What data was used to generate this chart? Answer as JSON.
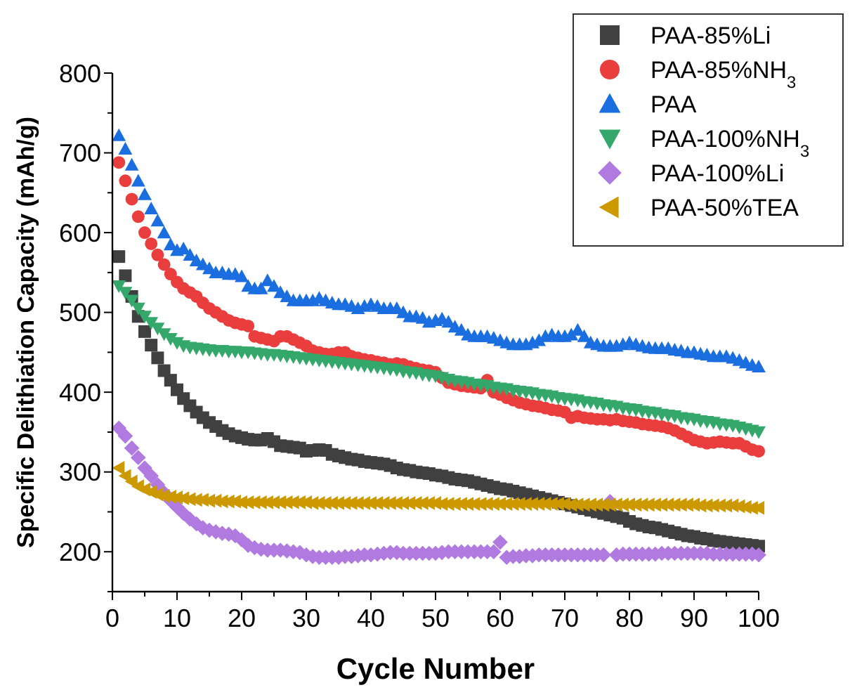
{
  "chart_data": {
    "type": "scatter",
    "xlabel": "Cycle Number",
    "ylabel": "Specific Delithiation Capacity (mAh/g)",
    "x": [
      1,
      2,
      3,
      4,
      5,
      6,
      7,
      8,
      9,
      10,
      11,
      12,
      13,
      14,
      15,
      16,
      17,
      18,
      19,
      20,
      21,
      22,
      23,
      24,
      25,
      26,
      27,
      28,
      29,
      30,
      31,
      32,
      33,
      34,
      35,
      36,
      37,
      38,
      39,
      40,
      41,
      42,
      43,
      44,
      45,
      46,
      47,
      48,
      49,
      50,
      51,
      52,
      53,
      54,
      55,
      56,
      57,
      58,
      59,
      60,
      61,
      62,
      63,
      64,
      65,
      66,
      67,
      68,
      69,
      70,
      71,
      72,
      73,
      74,
      75,
      76,
      77,
      78,
      79,
      80,
      81,
      82,
      83,
      84,
      85,
      86,
      87,
      88,
      89,
      90,
      91,
      92,
      93,
      94,
      95,
      96,
      97,
      98,
      99,
      100
    ],
    "xlim": [
      0,
      100
    ],
    "xticks": [
      0,
      {
        "value": 5,
        "label": null
      },
      10,
      {
        "value": 15,
        "label": null
      },
      20,
      {
        "value": 25,
        "label": null
      },
      30,
      {
        "value": 35,
        "label": null
      },
      40,
      {
        "value": 45,
        "label": null
      },
      50,
      {
        "value": 55,
        "label": null
      },
      60,
      {
        "value": 65,
        "label": null
      },
      70,
      {
        "value": 75,
        "label": null
      },
      80,
      {
        "value": 85,
        "label": null
      },
      90,
      {
        "value": 95,
        "label": null
      },
      100
    ],
    "ylim": [
      150,
      800
    ],
    "yticks": [
      {
        "value": 150,
        "label": null
      },
      200,
      {
        "value": 250,
        "label": null
      },
      300,
      {
        "value": 350,
        "label": null
      },
      400,
      {
        "value": 450,
        "label": null
      },
      500,
      {
        "value": 550,
        "label": null
      },
      600,
      {
        "value": 650,
        "label": null
      },
      700,
      {
        "value": 750,
        "label": null
      },
      800
    ],
    "grid": false,
    "legend": "top right",
    "series": [
      {
        "name": "PAA-85%Li",
        "color": "#404040",
        "marker": "square",
        "values": [
          570,
          546,
          520,
          495,
          476,
          459,
          443,
          427,
          415,
          403,
          392,
          383,
          375,
          368,
          362,
          357,
          352,
          348,
          345,
          343,
          341,
          340,
          340,
          342,
          338,
          333,
          332,
          331,
          330,
          326,
          327,
          328,
          327,
          322,
          320,
          318,
          316,
          315,
          313,
          312,
          311,
          310,
          308,
          305,
          303,
          302,
          300,
          299,
          298,
          296,
          295,
          293,
          291,
          290,
          289,
          287,
          285,
          283,
          281,
          279,
          278,
          276,
          274,
          272,
          270,
          268,
          266,
          264,
          262,
          260,
          258,
          256,
          254,
          252,
          250,
          248,
          246,
          244,
          242,
          238,
          235,
          233,
          231,
          230,
          228,
          226,
          224,
          222,
          220,
          219,
          217,
          216,
          214,
          213,
          212,
          211,
          210,
          209,
          208,
          207
        ]
      },
      {
        "name": "PAA-85%NH$_{3}$",
        "color": "#ea3d3d",
        "marker": "circle",
        "values": [
          688,
          665,
          642,
          620,
          600,
          586,
          572,
          560,
          548,
          538,
          530,
          525,
          520,
          512,
          505,
          500,
          495,
          490,
          487,
          485,
          483,
          470,
          468,
          466,
          464,
          470,
          470,
          466,
          462,
          458,
          452,
          450,
          448,
          448,
          450,
          450,
          445,
          443,
          441,
          440,
          438,
          437,
          435,
          436,
          435,
          432,
          430,
          428,
          427,
          425,
          418,
          412,
          410,
          408,
          407,
          406,
          405,
          415,
          400,
          397,
          393,
          390,
          387,
          385,
          383,
          382,
          380,
          378,
          377,
          375,
          368,
          370,
          368,
          367,
          366,
          366,
          365,
          366,
          364,
          363,
          362,
          360,
          359,
          358,
          357,
          355,
          352,
          348,
          344,
          340,
          338,
          336,
          337,
          338,
          337,
          336,
          336,
          332,
          328,
          326
        ]
      },
      {
        "name": "PAA",
        "color": "#1a6ee0",
        "marker": "triangle",
        "values": [
          722,
          705,
          685,
          665,
          648,
          630,
          615,
          600,
          585,
          578,
          580,
          572,
          565,
          560,
          555,
          550,
          550,
          548,
          548,
          545,
          533,
          530,
          530,
          540,
          533,
          525,
          520,
          515,
          515,
          515,
          515,
          518,
          515,
          512,
          510,
          510,
          508,
          505,
          508,
          510,
          508,
          505,
          505,
          505,
          500,
          495,
          495,
          493,
          488,
          490,
          492,
          488,
          482,
          478,
          472,
          470,
          470,
          470,
          468,
          465,
          462,
          460,
          460,
          460,
          462,
          465,
          470,
          472,
          470,
          470,
          472,
          478,
          470,
          462,
          460,
          458,
          458,
          458,
          460,
          462,
          460,
          458,
          456,
          455,
          455,
          455,
          453,
          452,
          450,
          450,
          448,
          447,
          445,
          445,
          445,
          443,
          440,
          437,
          434,
          432
        ]
      },
      {
        "name": "PAA-100%NH$_{3}$",
        "color": "#33a86a",
        "marker": "triangle-down",
        "values": [
          533,
          525,
          515,
          505,
          495,
          487,
          480,
          473,
          467,
          462,
          458,
          456,
          455,
          454,
          453,
          452,
          452,
          451,
          451,
          450,
          450,
          449,
          448,
          447,
          447,
          446,
          445,
          444,
          443,
          442,
          441,
          440,
          439,
          438,
          437,
          436,
          435,
          434,
          433,
          432,
          431,
          430,
          429,
          428,
          426,
          425,
          424,
          422,
          421,
          420,
          418,
          416,
          414,
          413,
          412,
          410,
          409,
          408,
          406,
          405,
          404,
          402,
          401,
          400,
          399,
          397,
          396,
          395,
          393,
          392,
          391,
          390,
          388,
          387,
          386,
          384,
          383,
          382,
          380,
          379,
          378,
          376,
          375,
          374,
          372,
          371,
          370,
          368,
          367,
          366,
          364,
          363,
          362,
          360,
          359,
          358,
          356,
          354,
          352,
          350
        ]
      },
      {
        "name": "PAA-100%Li",
        "color": "#b07ae0",
        "marker": "diamond",
        "values": [
          355,
          345,
          330,
          318,
          305,
          295,
          284,
          274,
          264,
          256,
          248,
          241,
          235,
          230,
          227,
          225,
          223,
          222,
          220,
          215,
          208,
          205,
          203,
          202,
          202,
          202,
          201,
          200,
          199,
          196,
          194,
          193,
          193,
          193,
          193,
          194,
          194,
          195,
          196,
          196,
          197,
          198,
          199,
          199,
          198,
          198,
          198,
          198,
          198,
          198,
          199,
          200,
          200,
          200,
          200,
          200,
          200,
          200,
          200,
          212,
          193,
          194,
          194,
          195,
          195,
          196,
          196,
          196,
          196,
          196,
          196,
          196,
          196,
          196,
          196,
          196,
          263,
          196,
          197,
          197,
          197,
          197,
          197,
          197,
          198,
          198,
          198,
          198,
          198,
          198,
          198,
          198,
          197,
          197,
          197,
          197,
          197,
          197,
          197,
          196
        ]
      },
      {
        "name": "PAA-50%TEA",
        "color": "#cc9900",
        "marker": "triangle-left",
        "values": [
          305,
          295,
          288,
          282,
          278,
          275,
          272,
          270,
          269,
          268,
          267,
          266,
          265,
          265,
          264,
          264,
          263,
          263,
          263,
          262,
          262,
          262,
          262,
          262,
          262,
          262,
          262,
          262,
          262,
          262,
          261,
          261,
          261,
          261,
          261,
          261,
          261,
          261,
          261,
          261,
          261,
          261,
          261,
          261,
          261,
          261,
          261,
          261,
          261,
          261,
          260,
          260,
          260,
          260,
          260,
          260,
          260,
          260,
          260,
          260,
          260,
          260,
          260,
          260,
          260,
          260,
          260,
          260,
          260,
          260,
          259,
          259,
          259,
          259,
          259,
          259,
          259,
          259,
          259,
          259,
          259,
          259,
          259,
          259,
          259,
          259,
          259,
          259,
          259,
          259,
          258,
          258,
          258,
          258,
          258,
          258,
          257,
          256,
          255,
          255
        ]
      }
    ]
  }
}
